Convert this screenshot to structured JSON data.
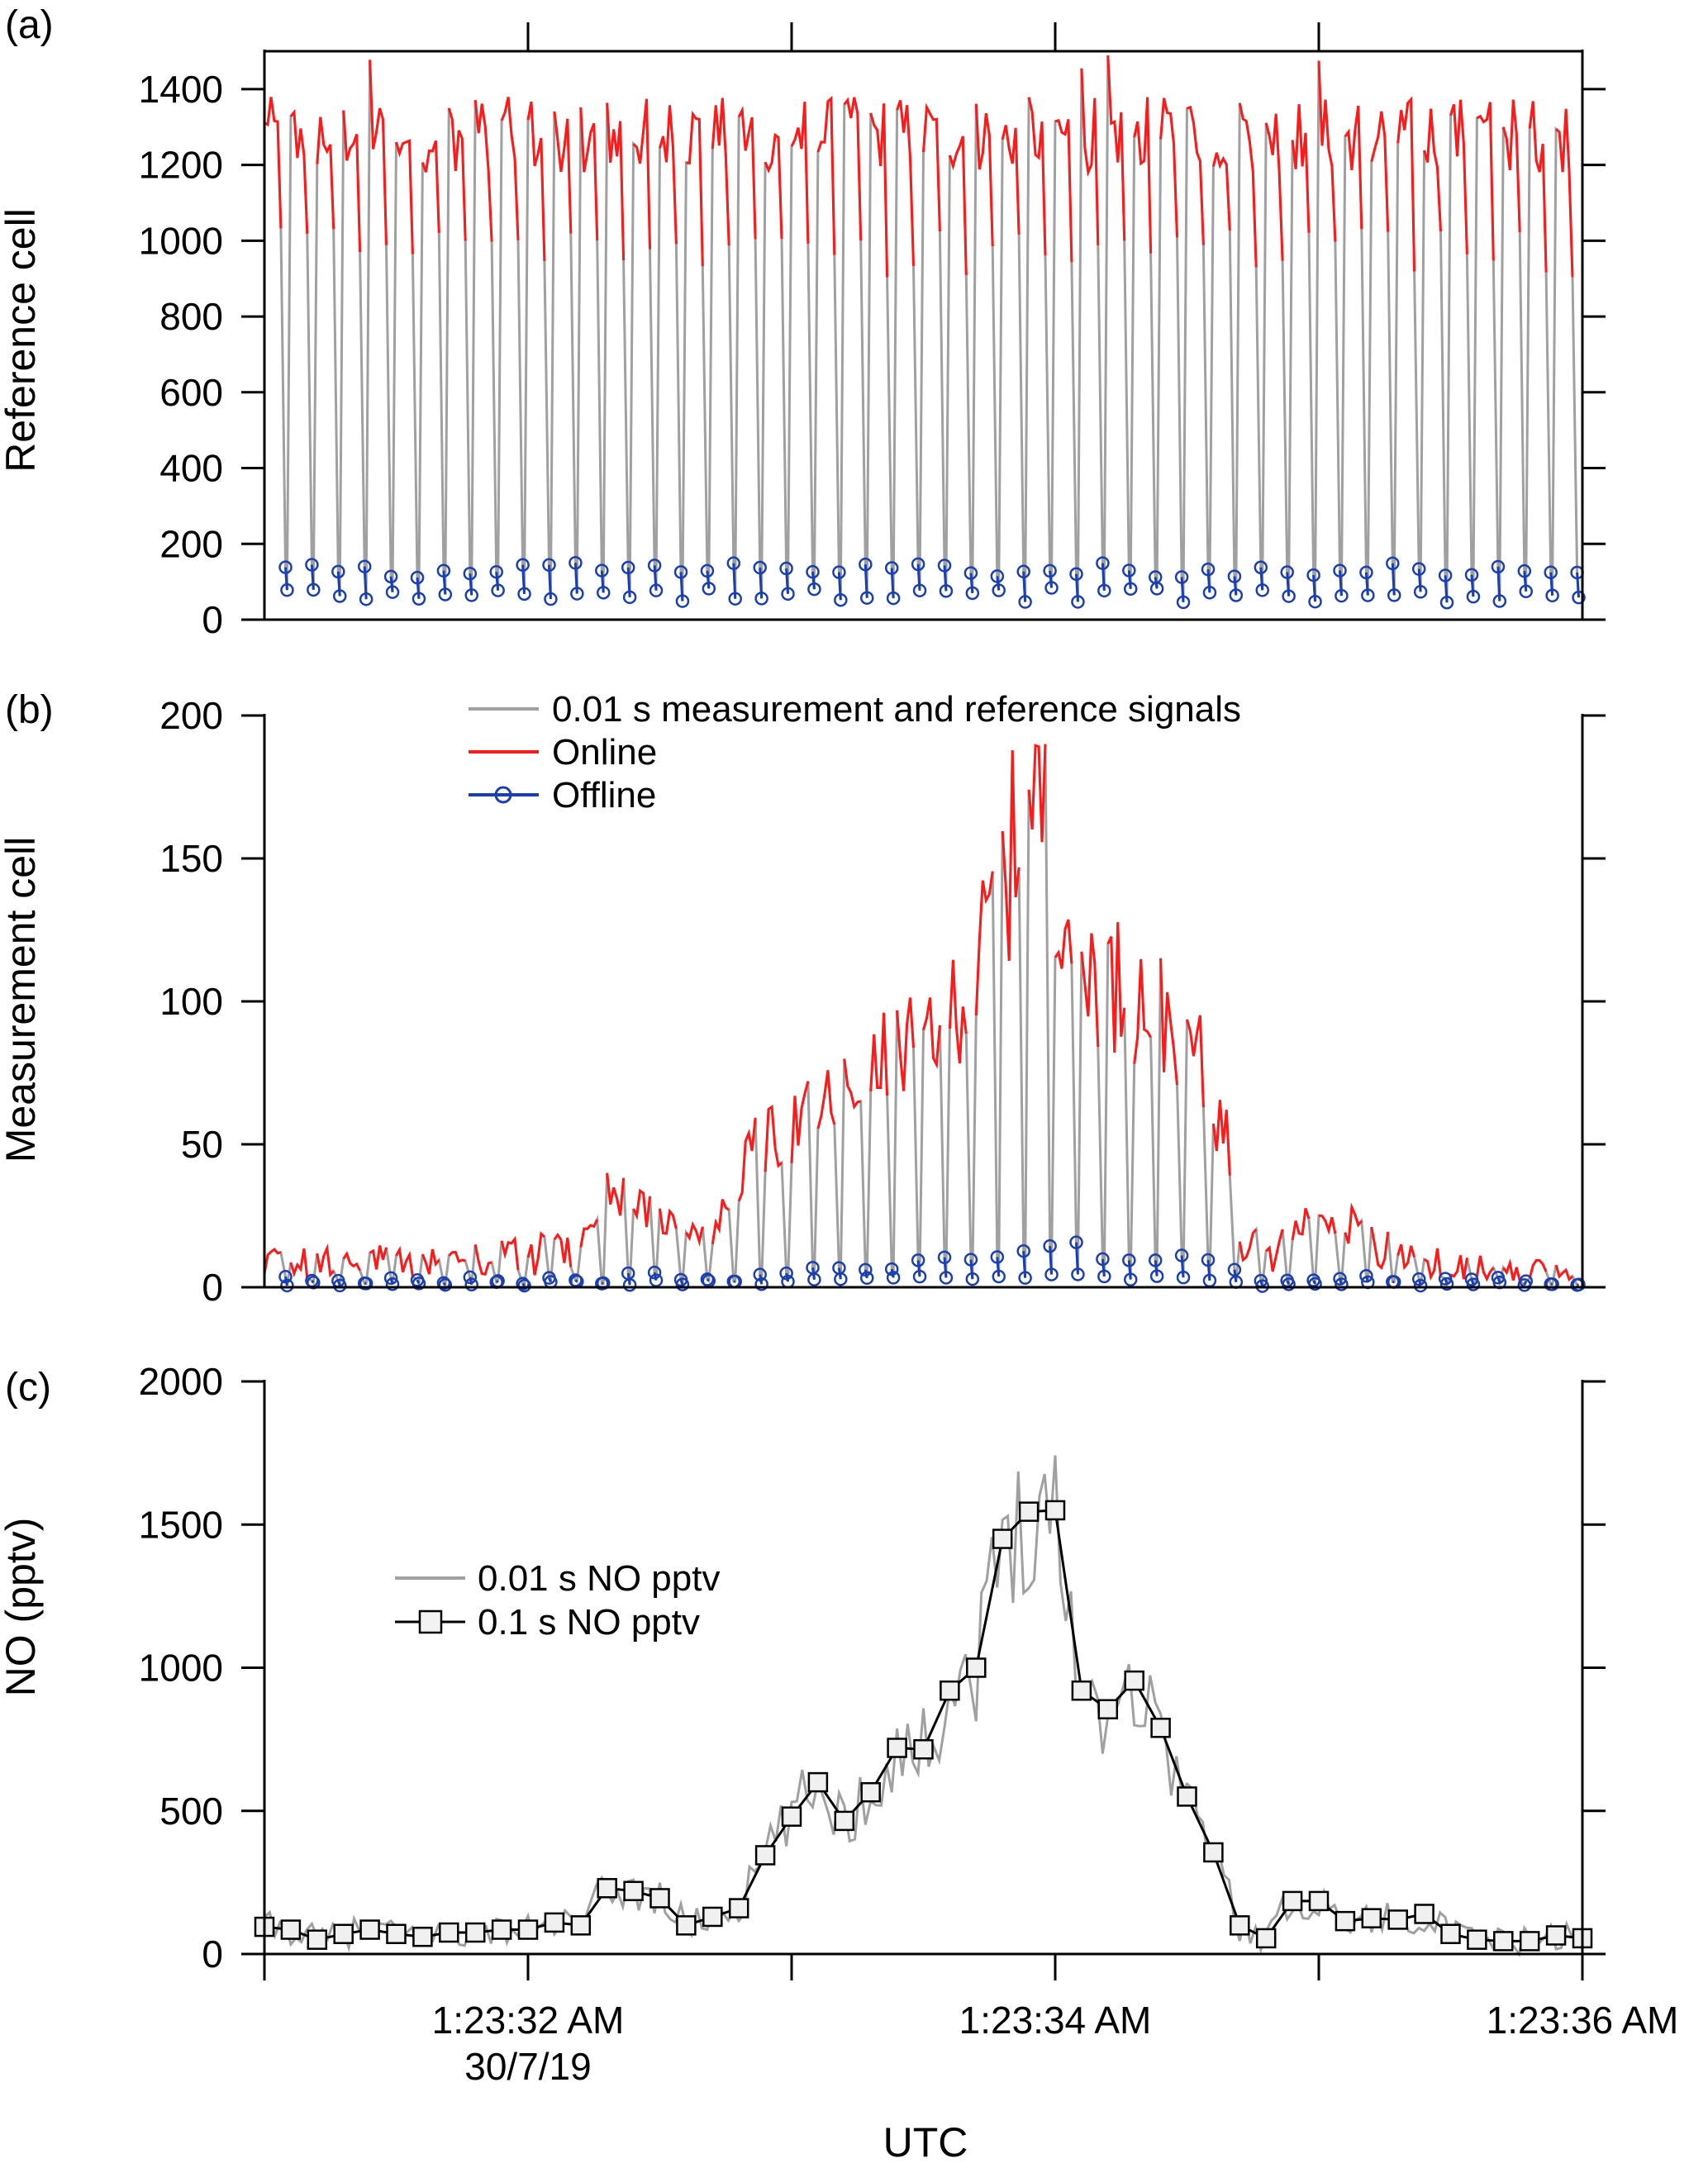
{
  "chart_data": [
    {
      "panel": "(a)",
      "type": "line",
      "ylabel": "Reference cell",
      "ylim": [
        0,
        1500
      ],
      "yticks": [
        0,
        200,
        400,
        600,
        800,
        1000,
        1200,
        1400
      ],
      "xlim_seconds": [
        31,
        36
      ],
      "cycles": 50,
      "series": [
        {
          "name": "",
          "kind": "raw-0.01s",
          "color": "#a0a0a0"
        },
        {
          "name": "",
          "kind": "online",
          "color": "#ff1a1a",
          "approx_level": 1260,
          "spread": 220
        },
        {
          "name": "",
          "kind": "offline",
          "color": "#1a3fb0",
          "approx_level": 95,
          "spread": 70
        }
      ]
    },
    {
      "panel": "(b)",
      "type": "line",
      "ylabel": "Measurement cell",
      "ylim": [
        0,
        200
      ],
      "yticks": [
        0,
        50,
        100,
        150,
        200
      ],
      "xlim_seconds": [
        31,
        36
      ],
      "series": [
        {
          "name": "0.01 s measurement and reference signals",
          "kind": "raw-0.01s",
          "color": "#a0a0a0"
        },
        {
          "name": "Online",
          "kind": "online",
          "color": "#ff1a1a"
        },
        {
          "name": "Offline",
          "kind": "offline",
          "color": "#1a3fb0"
        }
      ],
      "online_envelope": {
        "x": [
          31.0,
          31.5,
          32.0,
          32.2,
          32.3,
          32.5,
          32.7,
          32.85,
          33.1,
          33.3,
          33.5,
          33.7,
          33.85,
          33.95,
          34.1,
          34.35,
          34.5,
          34.65,
          34.7,
          34.8,
          35.0,
          35.2,
          35.5,
          36.0
        ],
        "y": [
          10,
          10,
          12,
          15,
          38,
          25,
          20,
          50,
          65,
          78,
          95,
          115,
          165,
          180,
          120,
          105,
          95,
          55,
          20,
          12,
          28,
          15,
          8,
          6
        ]
      }
    },
    {
      "panel": "(c)",
      "type": "line",
      "ylabel": "NO (pptv)",
      "xlabel": "UTC",
      "ylim": [
        0,
        2000
      ],
      "yticks": [
        0,
        500,
        1000,
        1500,
        2000
      ],
      "xlim_seconds": [
        31,
        36
      ],
      "xtick_labels": [
        {
          "t": 32,
          "line1": "1:23:32 AM",
          "line2": "30/7/19"
        },
        {
          "t": 34,
          "line1": "1:23:34 AM",
          "line2": ""
        },
        {
          "t": 36,
          "line1": "1:23:36 AM",
          "line2": ""
        }
      ],
      "series": [
        {
          "name": "0.01 s NO pptv",
          "color": "#a0a0a0",
          "resolution_s": 0.01
        },
        {
          "name": "0.1 s NO pptv",
          "color": "#000000",
          "marker": "open-square",
          "x": [
            31.0,
            31.1,
            31.2,
            31.3,
            31.4,
            31.5,
            31.6,
            31.7,
            31.8,
            31.9,
            32.0,
            32.1,
            32.2,
            32.3,
            32.4,
            32.5,
            32.6,
            32.7,
            32.8,
            32.9,
            33.0,
            33.1,
            33.2,
            33.3,
            33.4,
            33.5,
            33.6,
            33.7,
            33.8,
            33.9,
            34.0,
            34.1,
            34.2,
            34.3,
            34.4,
            34.5,
            34.6,
            34.7,
            34.8,
            34.9,
            35.0,
            35.1,
            35.2,
            35.3,
            35.4,
            35.5,
            35.6,
            35.7,
            35.8,
            35.9,
            36.0
          ],
          "y": [
            95,
            85,
            50,
            70,
            85,
            70,
            60,
            75,
            75,
            85,
            85,
            110,
            100,
            230,
            220,
            195,
            100,
            130,
            160,
            345,
            480,
            600,
            465,
            565,
            720,
            715,
            920,
            1000,
            1450,
            1545,
            1550,
            920,
            855,
            955,
            790,
            550,
            355,
            100,
            55,
            185,
            185,
            115,
            125,
            120,
            140,
            70,
            50,
            45,
            45,
            65,
            55
          ]
        }
      ]
    }
  ]
}
